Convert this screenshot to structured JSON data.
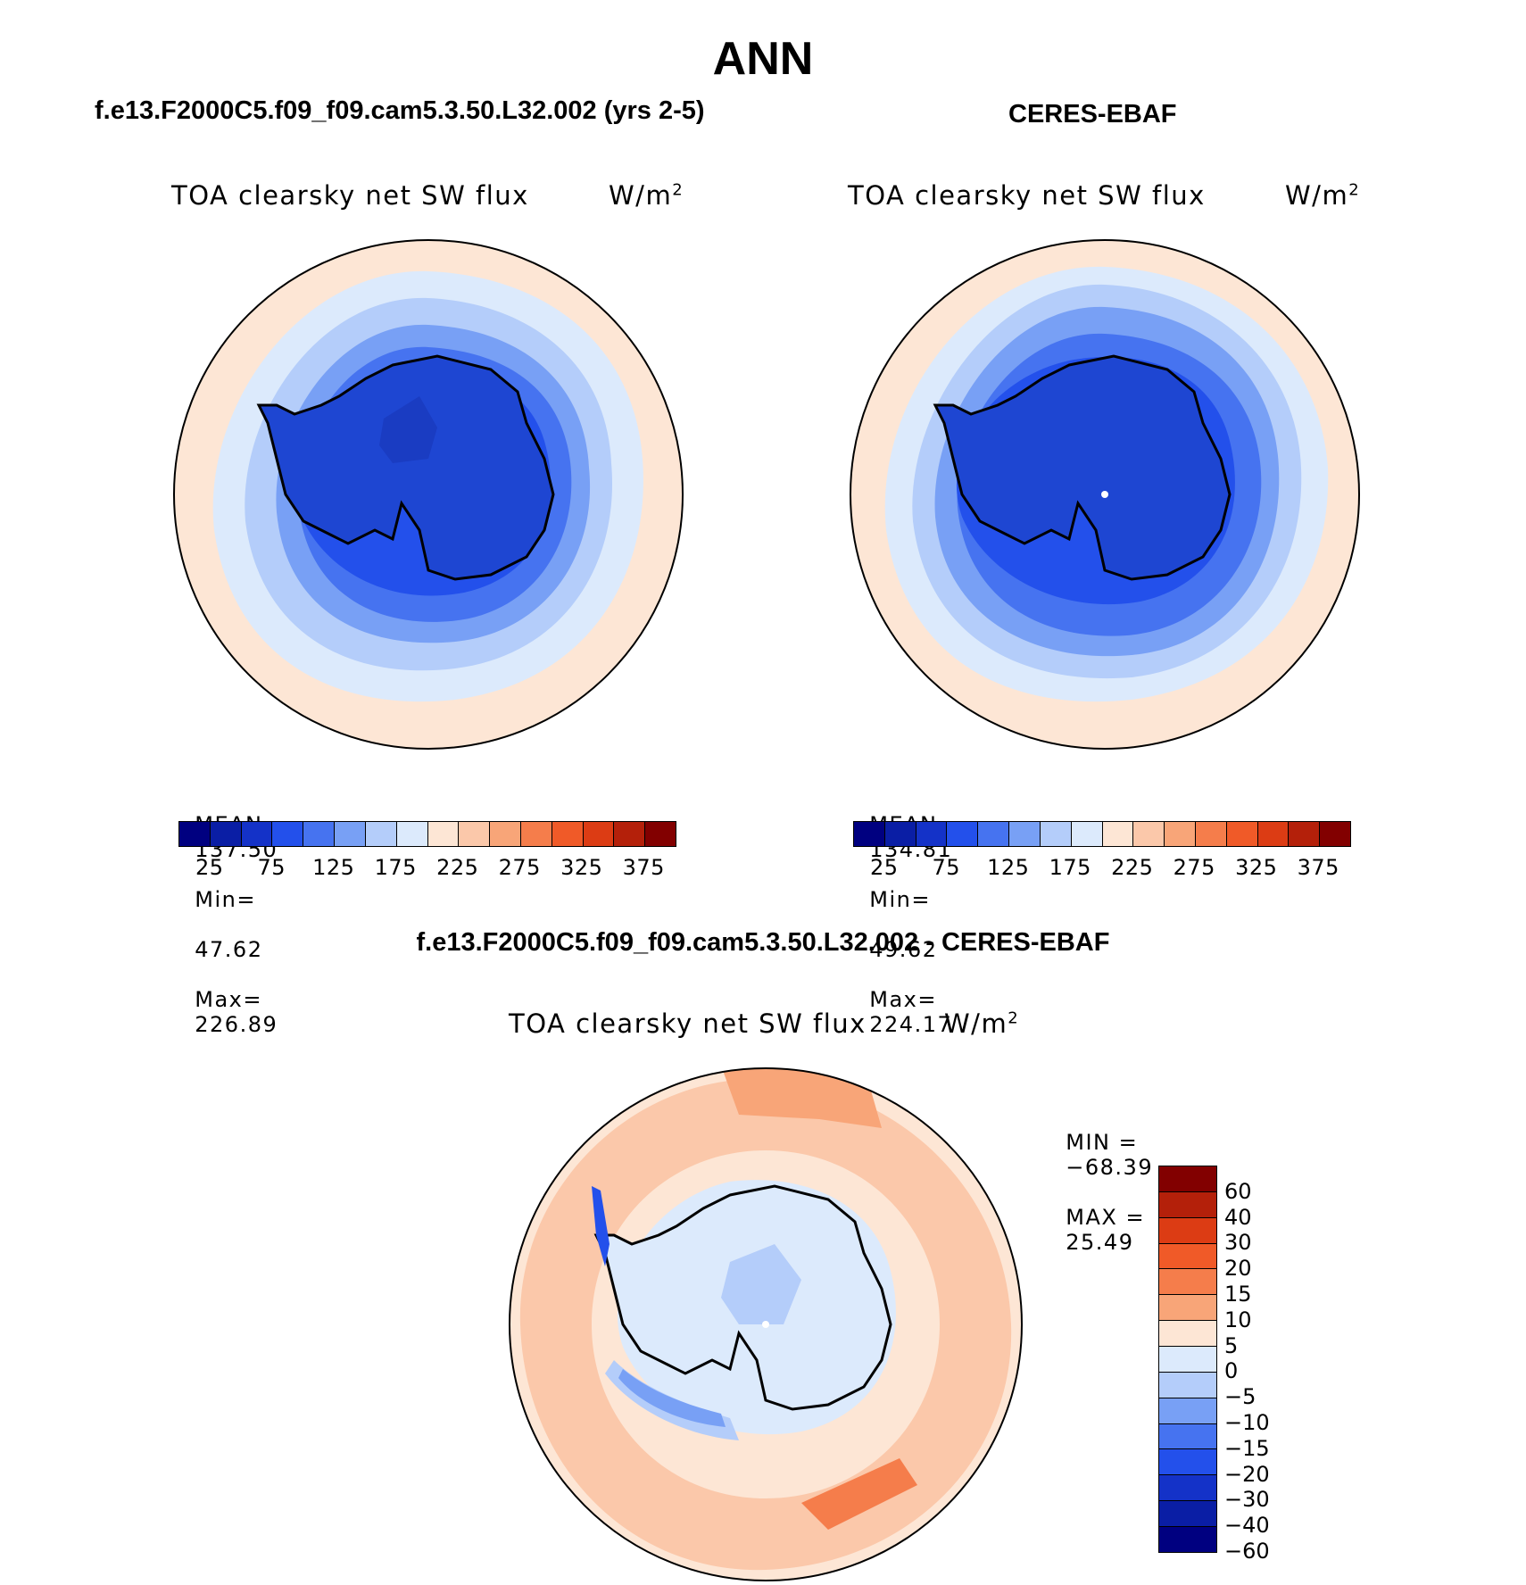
{
  "page": {
    "title": "ANN"
  },
  "panels": [
    {
      "id": "model",
      "case_title": "f.e13.F2000C5.f09_f09.cam5.3.50.L32.002 (yrs 2-5)",
      "variable": "TOA clearsky net SW flux",
      "units": "W/m",
      "units_exp": "2",
      "stats": {
        "mean_label": "MEAN=",
        "mean": "137.50",
        "min_label": "Min=",
        "min": "47.62",
        "max_label": "Max=",
        "max": "226.89"
      }
    },
    {
      "id": "obs",
      "case_title": "CERES-EBAF",
      "variable": "TOA clearsky net SW flux",
      "units": "W/m",
      "units_exp": "2",
      "stats": {
        "mean_label": "MEAN=",
        "mean": "134.81",
        "min_label": "Min=",
        "min": "49.62",
        "max_label": "Max=",
        "max": "224.17"
      }
    },
    {
      "id": "diff",
      "case_title": "f.e13.F2000C5.f09_f09.cam5.3.50.L32.002 - CERES-EBAF",
      "variable": "TOA clearsky net SW flux",
      "units": "W/m",
      "units_exp": "2",
      "stats": {
        "min_label": "MIN =",
        "min": "−68.39",
        "max_label": "MAX =",
        "max": "25.49"
      }
    }
  ],
  "colorbars": {
    "top": {
      "colors": [
        "#000080",
        "#0a1ea5",
        "#1432c8",
        "#2350eb",
        "#4673f0",
        "#78a0f5",
        "#b4cdfa",
        "#dceafc",
        "#fde6d5",
        "#fbc8aa",
        "#f8a578",
        "#f57d4b",
        "#f05a28",
        "#dc3c14",
        "#b4200a",
        "#820000"
      ],
      "labels": [
        "25",
        "75",
        "125",
        "175",
        "225",
        "275",
        "325",
        "375"
      ]
    },
    "diff": {
      "colors": [
        "#820000",
        "#b4200a",
        "#dc3c14",
        "#f05a28",
        "#f57d4b",
        "#f8a578",
        "#fde6d5",
        "#dceafc",
        "#b4cdfa",
        "#78a0f5",
        "#4673f0",
        "#2350eb",
        "#1432c8",
        "#0a1ea5",
        "#000080"
      ],
      "labels": [
        "60",
        "40",
        "30",
        "20",
        "15",
        "10",
        "5",
        "0",
        "−5",
        "−10",
        "−15",
        "−20",
        "−30",
        "−40",
        "−60"
      ]
    }
  }
}
